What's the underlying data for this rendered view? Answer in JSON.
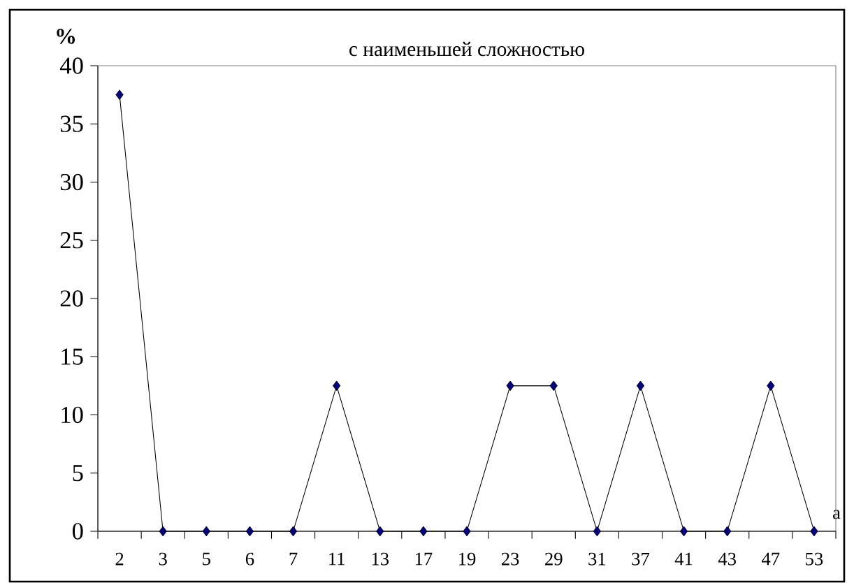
{
  "chart_data": {
    "type": "line",
    "title": "с наименьшей сложностью",
    "ylabel": "%",
    "xlabel": "a",
    "categories": [
      "2",
      "3",
      "5",
      "6",
      "7",
      "11",
      "13",
      "17",
      "19",
      "23",
      "29",
      "31",
      "37",
      "41",
      "43",
      "47",
      "53"
    ],
    "series": [
      {
        "color": "#000080",
        "values": [
          37.5,
          0,
          0,
          0,
          0,
          12.5,
          0,
          0,
          0,
          12.5,
          12.5,
          0,
          12.5,
          0,
          0,
          12.5,
          0
        ]
      }
    ],
    "ylim": [
      0,
      40
    ],
    "yticks": [
      0,
      5,
      10,
      15,
      20,
      25,
      30,
      35,
      40
    ],
    "marker": "diamond",
    "line_style": "solid",
    "grid": false
  }
}
